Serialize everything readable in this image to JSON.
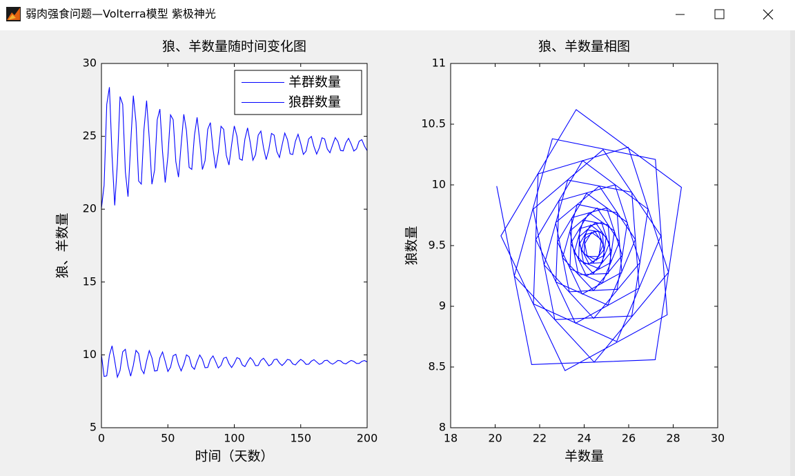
{
  "window": {
    "title": "弱肉强食问题—Volterra模型 紫极神光"
  },
  "chart_data": [
    {
      "type": "line",
      "title": "狼、羊数量随时间变化图",
      "x_label": "时间（天数）",
      "y_label": "狼、羊数量",
      "xlim": [
        0,
        200
      ],
      "xticks": [
        0,
        50,
        100,
        150,
        200
      ],
      "ylim": [
        5,
        30
      ],
      "yticks": [
        5,
        10,
        15,
        20,
        25,
        30
      ],
      "grid": false,
      "legend": "upper right",
      "x": [
        0,
        2,
        4,
        6,
        8,
        10,
        12,
        14,
        16,
        18,
        20,
        22,
        24,
        26,
        28,
        30,
        32,
        34,
        36,
        38,
        40,
        42,
        44,
        46,
        48,
        50,
        52,
        54,
        56,
        58,
        60,
        62,
        64,
        66,
        68,
        70,
        72,
        74,
        76,
        78,
        80,
        82,
        84,
        86,
        88,
        90,
        92,
        94,
        96,
        98,
        100,
        102,
        104,
        106,
        108,
        110,
        112,
        114,
        116,
        118,
        120,
        122,
        124,
        126,
        128,
        130,
        132,
        134,
        136,
        138,
        140,
        142,
        144,
        146,
        148,
        150,
        152,
        154,
        156,
        158,
        160,
        162,
        164,
        166,
        168,
        170,
        172,
        174,
        176,
        178,
        180,
        182,
        184,
        186,
        188,
        190,
        192,
        194,
        196,
        198,
        200
      ],
      "series": [
        {
          "name": "羊群数量",
          "color": "#0000ff",
          "values": [
            20.07,
            21.64,
            27.19,
            28.37,
            23.64,
            20.26,
            23.14,
            27.73,
            27.2,
            22.57,
            20.86,
            24.45,
            27.79,
            25.98,
            21.93,
            21.72,
            25.46,
            27.45,
            24.85,
            21.71,
            22.68,
            26.14,
            26.87,
            23.93,
            21.83,
            23.61,
            26.47,
            26.14,
            23.26,
            22.2,
            24.43,
            26.51,
            25.38,
            22.87,
            22.73,
            25.06,
            26.3,
            24.68,
            22.72,
            23.33,
            25.48,
            25.94,
            24.11,
            22.8,
            23.91,
            25.69,
            25.48,
            23.69,
            23.03,
            24.42,
            25.71,
            25.01,
            23.45,
            23.36,
            24.81,
            25.58,
            24.58,
            23.36,
            23.74,
            25.08,
            25.36,
            24.22,
            23.4,
            24.1,
            25.2,
            25.08,
            23.96,
            23.55,
            24.41,
            25.22,
            24.78,
            23.8,
            23.75,
            24.66,
            25.14,
            24.51,
            23.76,
            23.98,
            24.82,
            24.99,
            24.29,
            23.78,
            24.21,
            24.9,
            24.82,
            24.13,
            23.87,
            24.41,
            24.91,
            24.64,
            24.03,
            24.0,
            24.56,
            24.86,
            24.47,
            23.99,
            24.14,
            24.66,
            24.77,
            24.33,
            24.01
          ]
        },
        {
          "name": "狼群数量",
          "color": "#0000ff",
          "values": [
            9.99,
            8.52,
            8.56,
            9.98,
            10.62,
            9.58,
            8.47,
            8.93,
            10.21,
            10.38,
            9.25,
            8.54,
            9.28,
            10.31,
            10.09,
            9.02,
            8.71,
            9.58,
            10.29,
            9.8,
            8.89,
            8.92,
            9.8,
            10.2,
            9.55,
            8.86,
            9.15,
            9.94,
            10.04,
            9.34,
            8.9,
            9.36,
            10.0,
            9.87,
            9.2,
            9.01,
            9.55,
            9.99,
            9.69,
            9.12,
            9.14,
            9.69,
            9.93,
            9.53,
            9.1,
            9.28,
            9.77,
            9.84,
            9.4,
            9.13,
            9.42,
            9.81,
            9.73,
            9.31,
            9.19,
            9.53,
            9.81,
            9.62,
            9.26,
            9.27,
            9.62,
            9.77,
            9.52,
            9.25,
            9.36,
            9.67,
            9.71,
            9.44,
            9.27,
            9.45,
            9.69,
            9.64,
            9.38,
            9.31,
            9.52,
            9.69,
            9.57,
            9.35,
            9.36,
            9.57,
            9.67,
            9.51,
            9.35,
            9.42,
            9.61,
            9.63,
            9.46,
            9.36,
            9.47,
            9.62,
            9.59,
            9.43,
            9.38,
            9.51,
            9.62,
            9.55,
            9.41,
            9.41,
            9.55,
            9.61,
            9.51
          ]
        }
      ]
    },
    {
      "type": "line",
      "title": "狼、羊数量相图",
      "x_label": "羊数量",
      "y_label": "狼数量",
      "xlim": [
        18,
        30
      ],
      "xticks": [
        18,
        20,
        22,
        24,
        26,
        28,
        30
      ],
      "ylim": [
        8,
        11
      ],
      "yticks": [
        8,
        8.5,
        9,
        9.5,
        10,
        10.5,
        11
      ],
      "grid": false,
      "x": [
        20.07,
        21.64,
        27.19,
        28.37,
        23.64,
        20.26,
        23.14,
        27.73,
        27.2,
        22.57,
        20.86,
        24.45,
        27.79,
        25.98,
        21.93,
        21.72,
        25.46,
        27.45,
        24.85,
        21.71,
        22.68,
        26.14,
        26.87,
        23.93,
        21.83,
        23.61,
        26.47,
        26.14,
        23.26,
        22.2,
        24.43,
        26.51,
        25.38,
        22.87,
        22.73,
        25.06,
        26.3,
        24.68,
        22.72,
        23.33,
        25.48,
        25.94,
        24.11,
        22.8,
        23.91,
        25.69,
        25.48,
        23.69,
        23.03,
        24.42,
        25.71,
        25.01,
        23.45,
        23.36,
        24.81,
        25.58,
        24.58,
        23.36,
        23.74,
        25.08,
        25.36,
        24.22,
        23.4,
        24.1,
        25.2,
        25.08,
        23.96,
        23.55,
        24.41,
        25.22,
        24.78,
        23.8,
        23.75,
        24.66,
        25.14,
        24.51,
        23.76,
        23.98,
        24.82,
        24.99,
        24.29,
        23.78,
        24.21,
        24.9,
        24.82,
        24.13,
        23.87,
        24.41,
        24.91,
        24.64,
        24.03,
        24.0,
        24.56,
        24.86,
        24.47,
        23.99,
        24.14,
        24.66,
        24.77,
        24.33,
        24.01
      ],
      "series": [
        {
          "color": "#0000ff",
          "values": [
            9.99,
            8.52,
            8.56,
            9.98,
            10.62,
            9.58,
            8.47,
            8.93,
            10.21,
            10.38,
            9.25,
            8.54,
            9.28,
            10.31,
            10.09,
            9.02,
            8.71,
            9.58,
            10.29,
            9.8,
            8.89,
            8.92,
            9.8,
            10.2,
            9.55,
            8.86,
            9.15,
            9.94,
            10.04,
            9.34,
            8.9,
            9.36,
            10.0,
            9.87,
            9.2,
            9.01,
            9.55,
            9.99,
            9.69,
            9.12,
            9.14,
            9.69,
            9.93,
            9.53,
            9.1,
            9.28,
            9.77,
            9.84,
            9.4,
            9.13,
            9.42,
            9.81,
            9.73,
            9.31,
            9.19,
            9.53,
            9.81,
            9.62,
            9.26,
            9.27,
            9.62,
            9.77,
            9.52,
            9.25,
            9.36,
            9.67,
            9.71,
            9.44,
            9.27,
            9.45,
            9.69,
            9.64,
            9.38,
            9.31,
            9.52,
            9.69,
            9.57,
            9.35,
            9.36,
            9.57,
            9.67,
            9.51,
            9.35,
            9.42,
            9.61,
            9.63,
            9.46,
            9.36,
            9.47,
            9.62,
            9.59,
            9.43,
            9.38,
            9.51,
            9.62,
            9.55,
            9.41,
            9.41,
            9.55,
            9.61,
            9.51
          ]
        }
      ]
    }
  ]
}
